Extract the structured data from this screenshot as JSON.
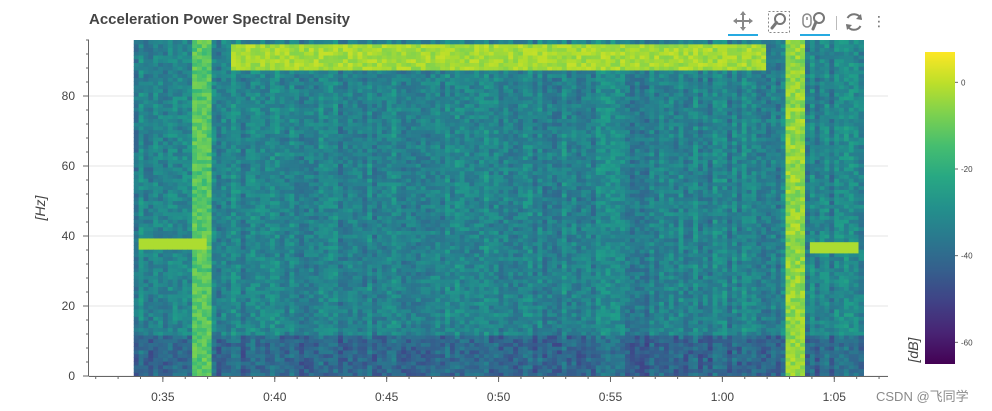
{
  "title": "Acceleration Power Spectral Density",
  "watermark": "CSDN @飞同学",
  "toolbar": {
    "pan_icon": "pan-move-icon",
    "box_zoom_icon": "box-zoom-icon",
    "wheel_zoom_icon": "wheel-zoom-icon",
    "reset_icon": "reset-icon",
    "more_label": "⋮"
  },
  "colors": {
    "gridline": "#e5e5e5",
    "active_tool": "#26aae1",
    "viridis": [
      "#440154",
      "#482878",
      "#3e4989",
      "#31688e",
      "#26828e",
      "#1f9e89",
      "#35b779",
      "#6ece58",
      "#b5de2b",
      "#fde725"
    ]
  },
  "chart_data": {
    "type": "heatmap",
    "title": "Acceleration Power Spectral Density",
    "xlabel": "",
    "ylabel": "[Hz]",
    "colorbar_label": "[dB]",
    "x_ticks": [
      "0:35",
      "0:40",
      "0:45",
      "0:50",
      "0:55",
      "1:00",
      "1:05"
    ],
    "x_tick_minutes": [
      35,
      40,
      45,
      50,
      55,
      60,
      65
    ],
    "x_range_minutes": [
      31.7,
      67.4
    ],
    "data_x_range_minutes": [
      33.7,
      66.3
    ],
    "y_ticks": [
      0,
      20,
      40,
      60,
      80
    ],
    "y_range": [
      0,
      96
    ],
    "colorbar_ticks": [
      0,
      -20,
      -40,
      -60
    ],
    "colorbar_range": [
      -65,
      7
    ],
    "features": [
      {
        "label": "narrow band before 0:37",
        "time_range": [
          "0:34",
          "0:37"
        ],
        "frequency_hz": 38,
        "level_db": -2
      },
      {
        "label": "narrow band after 1:04",
        "time_range": [
          "1:04",
          "1:06"
        ],
        "frequency_hz": 37,
        "level_db": -2
      },
      {
        "label": "high-frequency band",
        "time_range": [
          "0:38",
          "1:02"
        ],
        "frequency_hz": [
          88,
          95
        ],
        "level_db": -3
      },
      {
        "label": "broadband burst",
        "time": "0:36:45",
        "level_db": -12
      },
      {
        "label": "broadband burst",
        "time": "1:03:15",
        "level_db": -5
      }
    ]
  }
}
